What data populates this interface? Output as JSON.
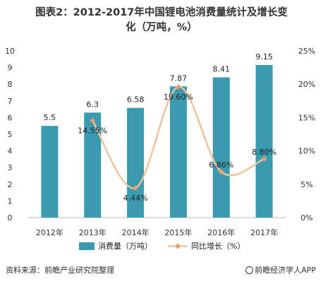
{
  "title_line1": "图表2：2012-2017年中国锂电池消费量统计及增长变",
  "title_line2": "化（万吨，%）",
  "source": "资料来源：前瞻产业研究院整理",
  "brand": "前瞻经济学人APP",
  "colors": {
    "bar": "#3a9ab0",
    "line": "#f3c19a",
    "marker": "#e0a070"
  },
  "chart_data": {
    "type": "bar+line",
    "categories": [
      "2012年",
      "2013年",
      "2014年",
      "2015年",
      "2016年",
      "2017年"
    ],
    "series": [
      {
        "name": "消费量（万吨）",
        "type": "bar",
        "axis": "left",
        "values": [
          5.5,
          6.3,
          6.58,
          7.87,
          8.41,
          9.15
        ],
        "labels": [
          "5.5",
          "6.3",
          "6.58",
          "7.87",
          "8.41",
          "9.15"
        ]
      },
      {
        "name": "同比增长（%）",
        "type": "line",
        "axis": "right",
        "values": [
          null,
          14.55,
          4.44,
          19.6,
          6.86,
          8.8
        ],
        "labels": [
          "",
          "14.55%",
          "4.44%",
          "19.60%",
          "6.86%",
          "8.80%"
        ]
      }
    ],
    "left_axis": {
      "min": 0,
      "max": 10,
      "ticks": [
        "0",
        "1",
        "2",
        "3",
        "4",
        "5",
        "6",
        "7",
        "8",
        "9",
        "10"
      ]
    },
    "right_axis": {
      "min": 0,
      "max": 25,
      "ticks": [
        "0%",
        "5%",
        "10%",
        "15%",
        "20%",
        "25%"
      ]
    },
    "legend_position": "bottom",
    "grid": false
  }
}
